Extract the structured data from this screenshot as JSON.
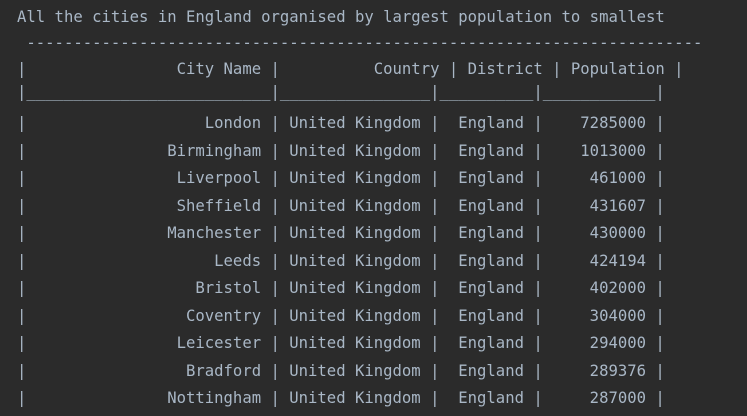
{
  "console": {
    "heading": "All the cities in England organised by largest population to smallest",
    "separator_top": " ------------------------------------------------------------------------",
    "header_row": "|                City Name |          Country | District | Population |",
    "separator_mid": "|__________________________|________________|__________|____________|",
    "rows": [
      "|                   London | United Kingdom |  England |    7285000 |",
      "|               Birmingham | United Kingdom |  England |    1013000 |",
      "|                Liverpool | United Kingdom |  England |     461000 |",
      "|                Sheffield | United Kingdom |  England |     431607 |",
      "|               Manchester | United Kingdom |  England |     430000 |",
      "|                    Leeds | United Kingdom |  England |     424194 |",
      "|                  Bristol | United Kingdom |  England |     402000 |",
      "|                 Coventry | United Kingdom |  England |     304000 |",
      "|                Leicester | United Kingdom |  England |     294000 |",
      "|                 Bradford | United Kingdom |  England |     289376 |",
      "|               Nottingham | United Kingdom |  England |     287000 |"
    ]
  },
  "colors": {
    "background": "#2b2b2b",
    "text": "#a9b7c6"
  }
}
